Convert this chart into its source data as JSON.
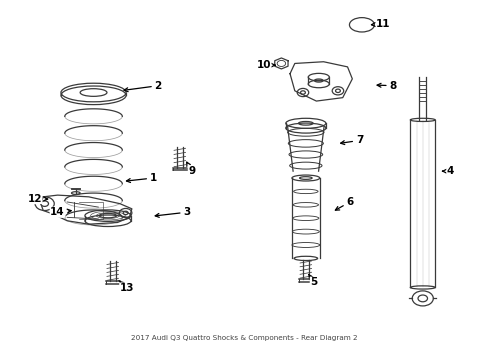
{
  "title": "2017 Audi Q3 Quattro Shocks & Components - Rear Diagram 2",
  "bg_color": "#ffffff",
  "line_color": "#3a3a3a",
  "label_color": "#000000",
  "fig_width": 4.89,
  "fig_height": 3.6,
  "dpi": 100,
  "label_positions": {
    "1": [
      0.31,
      0.49,
      0.245,
      0.48
    ],
    "2": [
      0.32,
      0.76,
      0.24,
      0.745
    ],
    "3": [
      0.38,
      0.39,
      0.305,
      0.378
    ],
    "4": [
      0.93,
      0.51,
      0.905,
      0.51
    ],
    "5": [
      0.645,
      0.185,
      0.633,
      0.21
    ],
    "6": [
      0.72,
      0.42,
      0.682,
      0.39
    ],
    "7": [
      0.74,
      0.6,
      0.692,
      0.59
    ],
    "8": [
      0.81,
      0.76,
      0.768,
      0.762
    ],
    "9": [
      0.39,
      0.51,
      0.378,
      0.54
    ],
    "10": [
      0.54,
      0.82,
      0.572,
      0.82
    ],
    "11": [
      0.79,
      0.94,
      0.762,
      0.938
    ],
    "12": [
      0.062,
      0.43,
      0.098,
      0.428
    ],
    "13": [
      0.255,
      0.168,
      0.238,
      0.19
    ],
    "14": [
      0.11,
      0.39,
      0.147,
      0.396
    ]
  }
}
